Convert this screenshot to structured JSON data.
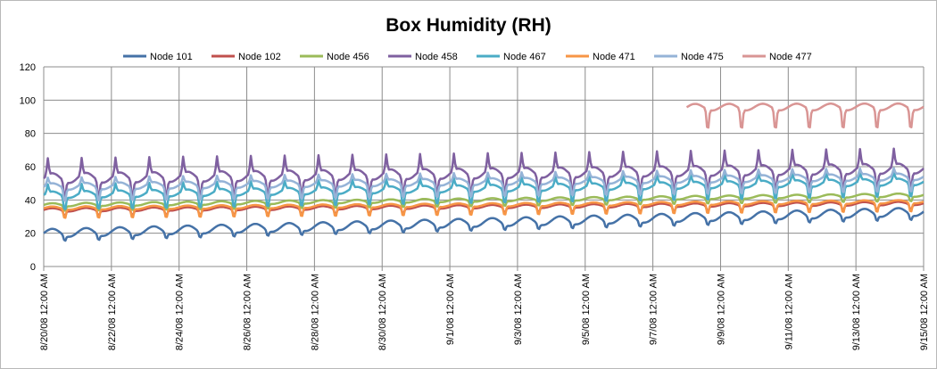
{
  "chart_data": {
    "type": "line",
    "title": "Box Humidity (RH)",
    "xlabel": "",
    "ylabel": "",
    "ylim": [
      0,
      120
    ],
    "y_ticks": [
      "0",
      "20",
      "40",
      "60",
      "80",
      "100",
      "120"
    ],
    "x_ticks": [
      "8/20/08 12:00 AM",
      "8/22/08 12:00 AM",
      "8/24/08 12:00 AM",
      "8/26/08 12:00 AM",
      "8/28/08 12:00 AM",
      "8/30/08 12:00 AM",
      "9/1/08 12:00 AM",
      "9/3/08 12:00 AM",
      "9/5/08 12:00 AM",
      "9/7/08 12:00 AM",
      "9/9/08 12:00 AM",
      "9/11/08 12:00 AM",
      "9/13/08 12:00 AM",
      "9/15/08 12:00 AM"
    ],
    "x_range_days": [
      0,
      26
    ],
    "grid": true,
    "legend_position": "top",
    "series": [
      {
        "name": "Node 101",
        "color": "#4572a7",
        "base": 20,
        "trend": 13,
        "spike": 0,
        "dip": 4,
        "daily_amp": 2.5
      },
      {
        "name": "Node 102",
        "color": "#c0504d",
        "base": 34,
        "trend": 4,
        "spike": 0,
        "dip": 4,
        "daily_amp": 1
      },
      {
        "name": "Node 456",
        "color": "#9bbb59",
        "base": 37,
        "trend": 6,
        "spike": 0,
        "dip": 4,
        "daily_amp": 1
      },
      {
        "name": "Node 458",
        "color": "#7f60a0",
        "base": 53,
        "trend": 6,
        "spike": 10,
        "dip": 12,
        "daily_amp": 3
      },
      {
        "name": "Node 467",
        "color": "#4bacc6",
        "base": 43,
        "trend": 8,
        "spike": 5,
        "dip": 10,
        "daily_amp": 2
      },
      {
        "name": "Node 471",
        "color": "#f79646",
        "base": 35,
        "trend": 4,
        "spike": 0,
        "dip": 7,
        "daily_amp": 1
      },
      {
        "name": "Node 475",
        "color": "#95b3d7",
        "base": 48,
        "trend": 6,
        "spike": 4,
        "dip": 10,
        "daily_amp": 2
      },
      {
        "name": "Node 477",
        "color": "#d99594",
        "base": 95,
        "trend": 1,
        "spike": 0,
        "dip": 15,
        "daily_amp": 2,
        "start_day": 19
      }
    ]
  },
  "colors": {
    "grid": "#8c8c8c",
    "border": "#b8b8b8"
  }
}
